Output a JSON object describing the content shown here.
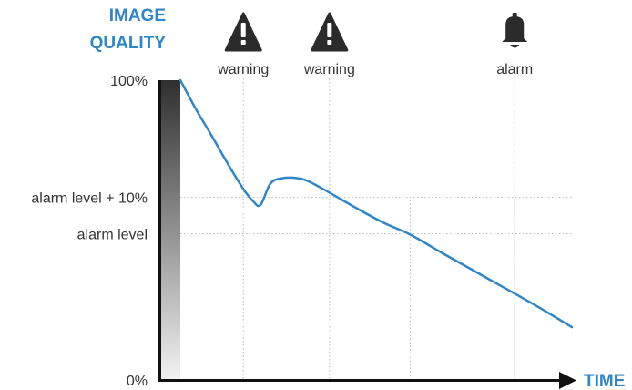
{
  "chart_data": {
    "type": "line",
    "ytitle_lines": [
      "IMAGE",
      "QUALITY"
    ],
    "xtitle": "TIME",
    "y_ticks": [
      {
        "label": "100%",
        "value": 100
      },
      {
        "label": "alarm level + 10%",
        "value": 60.9
      },
      {
        "label": "alarm level",
        "value": 48.8
      },
      {
        "label": "0%",
        "value": 0
      }
    ],
    "ylim": [
      0,
      100
    ],
    "xlim": [
      0,
      100
    ],
    "events": [
      {
        "label": "warning",
        "icon": "warning-triangle-icon",
        "x": 16.1
      },
      {
        "label": "warning",
        "icon": "warning-triangle-icon",
        "x": 38.1
      },
      {
        "label": "alarm",
        "icon": "bell-icon",
        "x": 85.4
      }
    ],
    "x_marks": [
      58.7,
      85.4
    ],
    "series": [
      {
        "x": [
          0,
          4,
          8,
          12,
          16,
          18.6,
          20.5,
          23,
          26,
          30,
          33,
          38.1,
          45,
          52,
          58.7,
          66,
          72,
          78,
          85.4,
          92,
          100
        ],
        "y": [
          100,
          90.3,
          81.5,
          72.4,
          63.9,
          59.6,
          58.4,
          65.5,
          67.3,
          67.3,
          66.1,
          62.5,
          57.3,
          52.4,
          48.5,
          43.0,
          38.6,
          34.2,
          28.8,
          23.9,
          17.6
        ]
      }
    ],
    "colors": {
      "line": "#2e86c8",
      "title": "#2e86c8",
      "axis": "#111111",
      "grid": "#bbbbbb",
      "icon": "#2b2b2b"
    }
  }
}
